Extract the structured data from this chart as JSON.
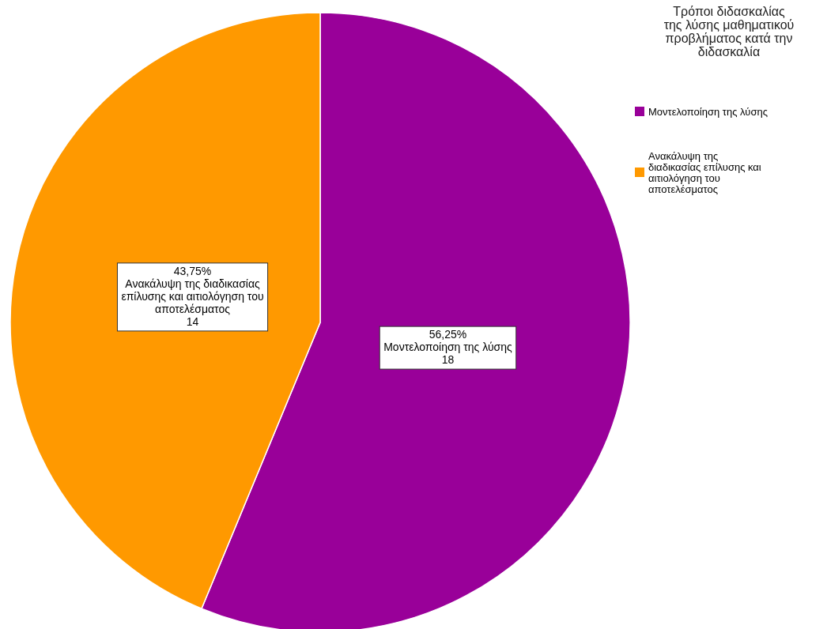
{
  "chart_data": {
    "type": "pie",
    "title": "Τρόποι διδασκαλίας της λύσης μαθηματικού προβλήματος κατά την διδασκαλία",
    "categories": [
      "Μοντελοποίηση της λύσης",
      "Ανακάλυψη της διαδικασίας επίλυσης και αιτιολόγηση του αποτελέσματος"
    ],
    "values": [
      18,
      14
    ],
    "colors": [
      "#990099",
      "#ff9900"
    ],
    "value_labels": [
      "18",
      "14"
    ],
    "annotations": [
      "56,25%",
      "43,75%"
    ],
    "legend": "right"
  }
}
